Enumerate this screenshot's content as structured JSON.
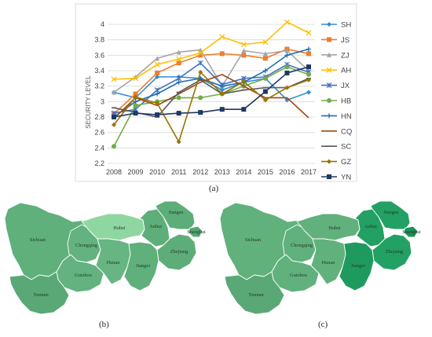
{
  "chart_data": [
    {
      "type": "line",
      "title": "",
      "ylabel": "SECURITY LEVEL",
      "xlabel": "",
      "x": [
        "2008",
        "2009",
        "2010",
        "2011",
        "2012",
        "2013",
        "2014",
        "2015",
        "2016",
        "2017"
      ],
      "ylim": [
        2.2,
        4.0
      ],
      "yticks": [
        "2.2",
        "2.4",
        "2.6",
        "2.8",
        "3",
        "3.2",
        "3.4",
        "3.6",
        "3.8",
        "4"
      ],
      "grid": true,
      "legend_position": "right",
      "series": [
        {
          "name": "SH",
          "color": "#2e8fd0",
          "marker": "diamond",
          "values": [
            3.12,
            3.05,
            3.32,
            3.32,
            3.3,
            3.15,
            3.25,
            3.3,
            3.02,
            3.12
          ]
        },
        {
          "name": "JS",
          "color": "#ed7d31",
          "marker": "square",
          "values": [
            2.84,
            3.1,
            3.37,
            3.5,
            3.6,
            3.62,
            3.6,
            3.56,
            3.68,
            3.62
          ]
        },
        {
          "name": "ZJ",
          "color": "#a5a5a5",
          "marker": "triangle",
          "values": [
            3.12,
            3.32,
            3.56,
            3.64,
            3.67,
            3.2,
            3.66,
            3.62,
            3.66,
            3.4
          ]
        },
        {
          "name": "AH",
          "color": "#ffc000",
          "marker": "x",
          "values": [
            3.29,
            3.3,
            3.48,
            3.55,
            3.63,
            3.84,
            3.74,
            3.77,
            4.03,
            3.89
          ]
        },
        {
          "name": "JX",
          "color": "#4472c4",
          "marker": "asterisk",
          "values": [
            2.85,
            2.9,
            3.15,
            3.3,
            3.5,
            3.22,
            3.3,
            3.32,
            3.48,
            3.38
          ]
        },
        {
          "name": "HB",
          "color": "#70ad47",
          "marker": "circle",
          "values": [
            2.42,
            2.95,
            3.0,
            3.05,
            3.05,
            3.1,
            3.2,
            3.3,
            3.45,
            3.35
          ]
        },
        {
          "name": "HN",
          "color": "#1f6fb2",
          "marker": "plus",
          "values": [
            2.8,
            3.0,
            3.1,
            3.25,
            3.3,
            3.2,
            3.25,
            3.4,
            3.6,
            3.68
          ]
        },
        {
          "name": "CQ",
          "color": "#9e480e",
          "marker": "none",
          "values": [
            2.78,
            3.05,
            2.95,
            3.1,
            3.25,
            3.35,
            3.2,
            3.05,
            3.05,
            2.79
          ]
        },
        {
          "name": "SC",
          "color": "#595959",
          "marker": "dash",
          "values": [
            2.92,
            2.86,
            2.8,
            3.12,
            3.28,
            3.1,
            3.15,
            3.18,
            3.18,
            3.3
          ]
        },
        {
          "name": "GZ",
          "color": "#997300",
          "marker": "diamond",
          "values": [
            2.7,
            3.06,
            2.98,
            2.48,
            3.38,
            3.1,
            3.26,
            3.02,
            3.18,
            3.28
          ]
        },
        {
          "name": "YN",
          "color": "#1f3864",
          "marker": "square",
          "values": [
            2.8,
            2.85,
            2.83,
            2.85,
            2.86,
            2.9,
            2.9,
            3.13,
            3.37,
            3.45
          ]
        }
      ]
    },
    {
      "type": "map",
      "regions": [
        "Sichuan",
        "Chongqing",
        "Guizhou",
        "Yunnan",
        "Hubei",
        "Hunan",
        "Jiangxi",
        "Anhui",
        "Jiangsu",
        "Shanghai",
        "Zhejiang"
      ]
    }
  ],
  "captions": {
    "a": "(a)",
    "b": "(b)",
    "c": "(c)"
  },
  "maps": {
    "b": {
      "colors": {
        "Sichuan": "#5fb07b",
        "Chongqing": "#63b27f",
        "Guizhou": "#63b27f",
        "Yunnan": "#5aa876",
        "Hubei": "#8fd7a1",
        "Hunan": "#66b582",
        "Jiangxi": "#60b07c",
        "Anhui": "#5eae7a",
        "Jiangsu": "#5dad79",
        "Shanghai": "#56a674",
        "Zhejiang": "#5dad79"
      },
      "labels": {
        "Sichuan": "Sichuan",
        "Chongqing": "Chongqing",
        "Guizhou": "Guizhou",
        "Yunnan": "Yunnan",
        "Hubei": "Hubei",
        "Hunan": "Hunan",
        "Jiangxi": "Jiangxi",
        "Anhui": "Anhui",
        "Jiangsu": "Jiangsu",
        "Shanghai": "Shanghai",
        "Zhejiang": "Zhejiang"
      }
    },
    "c": {
      "colors": {
        "Sichuan": "#61b17d",
        "Chongqing": "#61b17d",
        "Guizhou": "#61b17d",
        "Yunnan": "#5aa876",
        "Hubei": "#61b17d",
        "Hunan": "#61b17d",
        "Jiangxi": "#1f9a5e",
        "Anhui": "#23a063",
        "Jiangsu": "#23a063",
        "Shanghai": "#1c9259",
        "Zhejiang": "#23a063"
      },
      "labels": {
        "Sichuan": "Sichuan",
        "Chongqing": "Chongqing",
        "Guizhou": "Guizhou",
        "Yunnan": "Yunnan",
        "Hubei": "Hubei",
        "Hunan": "Hunan",
        "Jiangxi": "Jiangxi",
        "Anhui": "Anhui",
        "Jiangsu": "Jiangsu",
        "Shanghai": "Shanghai",
        "Zhejiang": "Zhejiang"
      }
    }
  }
}
